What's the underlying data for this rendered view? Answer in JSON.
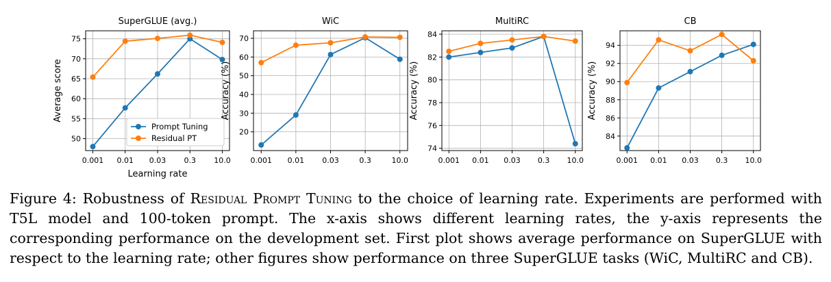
{
  "chart_data": [
    {
      "type": "line",
      "title": "SuperGLUE (avg.)",
      "xlabel": "Learning rate",
      "ylabel": "Average score",
      "categories": [
        "0.001",
        "0.01",
        "0.03",
        "0.3",
        "10.0"
      ],
      "ylim": [
        47,
        77
      ],
      "yticks": [
        50,
        55,
        60,
        65,
        70,
        75
      ],
      "grid": true,
      "legend": "lower-right",
      "series": [
        {
          "name": "Prompt Tuning",
          "color": "#1f77b4",
          "values": [
            48.0,
            57.7,
            66.2,
            75.0,
            69.8
          ]
        },
        {
          "name": "Residual PT",
          "color": "#ff7f0e",
          "values": [
            65.4,
            74.4,
            75.1,
            75.9,
            74.1
          ]
        }
      ]
    },
    {
      "type": "line",
      "title": "WiC",
      "xlabel": "",
      "ylabel": "Accuracy (%)",
      "categories": [
        "0.001",
        "0.01",
        "0.03",
        "0.3",
        "10.0"
      ],
      "ylim": [
        10,
        74
      ],
      "yticks": [
        20,
        30,
        40,
        50,
        60,
        70
      ],
      "grid": true,
      "series": [
        {
          "color": "#1f77b4",
          "values": [
            13.0,
            29.0,
            61.3,
            70.3,
            58.8
          ]
        },
        {
          "color": "#ff7f0e",
          "values": [
            57.0,
            66.3,
            67.6,
            70.7,
            70.5
          ]
        }
      ]
    },
    {
      "type": "line",
      "title": "MultiRC",
      "xlabel": "",
      "ylabel": "Accuracy (%)",
      "categories": [
        "0.001",
        "0.01",
        "0.03",
        "0.3",
        "10.0"
      ],
      "ylim": [
        73.8,
        84.3
      ],
      "yticks": [
        74,
        76,
        78,
        80,
        82,
        84
      ],
      "grid": true,
      "series": [
        {
          "color": "#1f77b4",
          "values": [
            82.0,
            82.4,
            82.8,
            83.8,
            74.4
          ]
        },
        {
          "color": "#ff7f0e",
          "values": [
            82.5,
            83.2,
            83.5,
            83.8,
            83.4
          ]
        }
      ]
    },
    {
      "type": "line",
      "title": "CB",
      "xlabel": "",
      "ylabel": "Accuracy (%)",
      "categories": [
        "0.001",
        "0.01",
        "0.03",
        "0.3",
        "10.0"
      ],
      "ylim": [
        82.4,
        95.6
      ],
      "yticks": [
        84,
        86,
        88,
        90,
        92,
        94
      ],
      "grid": true,
      "series": [
        {
          "color": "#1f77b4",
          "values": [
            82.7,
            89.3,
            91.1,
            92.9,
            94.1
          ]
        },
        {
          "color": "#ff7f0e",
          "values": [
            89.9,
            94.6,
            93.4,
            95.2,
            92.3
          ]
        }
      ]
    }
  ],
  "caption": {
    "figure_label": "Figure 4: Robustness of",
    "method_name": "Residual Prompt Tuning",
    "text": "to the choice of learning rate. Experiments are performed with T5L model and 100-token prompt. The x-axis shows different learning rates, the y-axis represents the corresponding performance on the development set. First plot shows average performance on SuperGLUE with respect to the learning rate; other figures show performance on three SuperGLUE tasks (WiC, MultiRC and CB)."
  }
}
